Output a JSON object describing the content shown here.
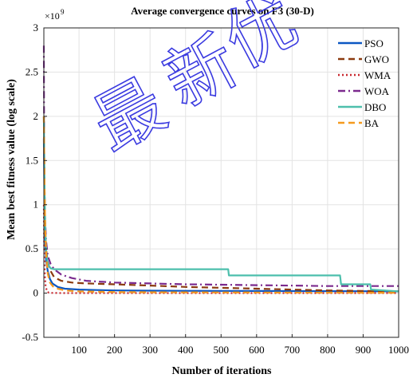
{
  "chart_data": {
    "type": "line",
    "title": "Average convergence curves on F3 (30-D)",
    "xlabel": "Number of iterations",
    "ylabel": "Mean best fitness value (log scale)",
    "xlim": [
      1,
      1000
    ],
    "ylim": [
      -0.5,
      3
    ],
    "y_exponent_label": "×10",
    "y_exponent_power": "9",
    "grid": true,
    "legend_position": "top-right",
    "x_ticks": [
      "100",
      "200",
      "300",
      "400",
      "500",
      "600",
      "700",
      "800",
      "900",
      "1000"
    ],
    "y_ticks": [
      "-0.5",
      "0",
      "0.5",
      "1",
      "1.5",
      "2",
      "2.5",
      "3"
    ],
    "series": [
      {
        "name": "PSO",
        "color": "#0b57c2",
        "dash": "solid",
        "x": [
          1,
          3,
          5,
          8,
          12,
          18,
          25,
          40,
          60,
          100,
          150,
          200,
          300,
          400,
          500,
          600,
          700,
          800,
          900,
          1000
        ],
        "y": [
          1.75,
          0.9,
          0.55,
          0.35,
          0.25,
          0.16,
          0.11,
          0.07,
          0.05,
          0.04,
          0.035,
          0.03,
          0.028,
          0.026,
          0.025,
          0.024,
          0.023,
          0.022,
          0.021,
          0.02
        ]
      },
      {
        "name": "GWO",
        "color": "#8b3a0f",
        "dash": "dashed",
        "x": [
          1,
          3,
          5,
          8,
          12,
          20,
          30,
          50,
          80,
          120,
          200,
          300,
          400,
          500,
          600,
          700,
          800,
          900,
          1000
        ],
        "y": [
          2.0,
          1.1,
          0.7,
          0.48,
          0.35,
          0.25,
          0.18,
          0.14,
          0.12,
          0.11,
          0.1,
          0.085,
          0.07,
          0.06,
          0.05,
          0.04,
          0.03,
          0.025,
          0.02
        ]
      },
      {
        "name": "WMA",
        "color": "#c8282f",
        "dash": "dotted",
        "x": [
          1,
          2,
          4,
          6,
          10,
          15,
          25,
          50,
          100,
          200,
          400,
          600,
          800,
          1000
        ],
        "y": [
          1.0,
          0.5,
          0.2,
          0.08,
          0.02,
          0.005,
          0.002,
          0.001,
          0.001,
          0.001,
          0.001,
          0.001,
          0.001,
          0.001
        ]
      },
      {
        "name": "WOA",
        "color": "#7b2a8e",
        "dash": "dashdot",
        "x": [
          1,
          2,
          4,
          7,
          12,
          20,
          30,
          50,
          80,
          120,
          200,
          300,
          400,
          500,
          600,
          700,
          800,
          900,
          1000
        ],
        "y": [
          2.8,
          1.6,
          0.9,
          0.6,
          0.42,
          0.33,
          0.27,
          0.21,
          0.17,
          0.14,
          0.12,
          0.11,
          0.1,
          0.095,
          0.09,
          0.085,
          0.08,
          0.08,
          0.08
        ]
      },
      {
        "name": "DBO",
        "color": "#4dbfac",
        "dash": "solid",
        "x": [
          1,
          3,
          5,
          8,
          12,
          20,
          30,
          520,
          522,
          700,
          835,
          838,
          920,
          922,
          960,
          1000
        ],
        "y": [
          2.0,
          1.2,
          0.7,
          0.45,
          0.33,
          0.28,
          0.27,
          0.27,
          0.2,
          0.2,
          0.2,
          0.1,
          0.1,
          0.04,
          0.03,
          0.02
        ]
      },
      {
        "name": "BA",
        "color": "#f59a1e",
        "dash": "dashed",
        "x": [
          1,
          3,
          5,
          8,
          12,
          18,
          30,
          60,
          100,
          200,
          300,
          400,
          500,
          600,
          700,
          800,
          900,
          1000
        ],
        "y": [
          2.0,
          1.2,
          0.7,
          0.4,
          0.22,
          0.12,
          0.06,
          0.03,
          0.02,
          0.012,
          0.01,
          0.009,
          0.008,
          0.007,
          0.006,
          0.005,
          0.004,
          0.003
        ]
      }
    ]
  },
  "watermark": {
    "chars": [
      "最",
      "新",
      "优"
    ],
    "color": "#3a3ae0"
  }
}
